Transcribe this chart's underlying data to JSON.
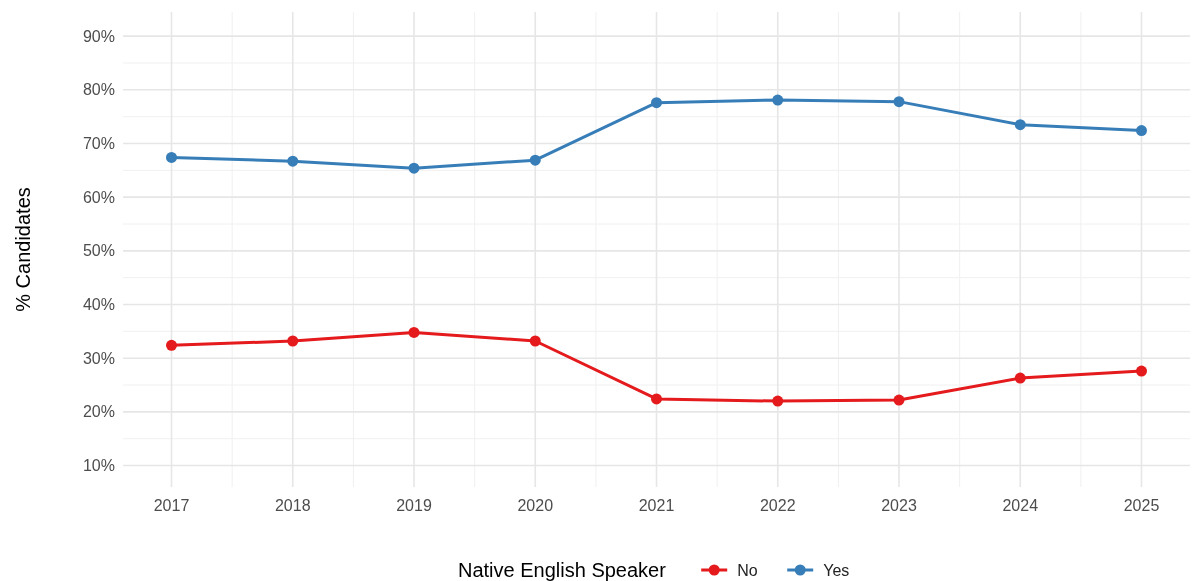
{
  "chart_data": {
    "type": "line",
    "ylabel": "% Candidates",
    "legend_title": "Native English Speaker",
    "x": [
      2017,
      2018,
      2019,
      2020,
      2021,
      2022,
      2023,
      2024,
      2025
    ],
    "xlim": [
      2016.6,
      2025.4
    ],
    "xticks": [
      2017,
      2018,
      2019,
      2020,
      2021,
      2022,
      2023,
      2024,
      2025
    ],
    "ylim": [
      6,
      94.5
    ],
    "yticks": [
      {
        "value": 10,
        "label": "10%"
      },
      {
        "value": 20,
        "label": "20%"
      },
      {
        "value": 30,
        "label": "30%"
      },
      {
        "value": 40,
        "label": "40%"
      },
      {
        "value": 50,
        "label": "50%"
      },
      {
        "value": 60,
        "label": "60%"
      },
      {
        "value": 70,
        "label": "70%"
      },
      {
        "value": 80,
        "label": "80%"
      },
      {
        "value": 90,
        "label": "90%"
      }
    ],
    "series": [
      {
        "name": "No",
        "color": "#e41a1c",
        "values": [
          32.4,
          33.2,
          34.8,
          33.2,
          22.4,
          22.0,
          22.2,
          26.3,
          27.6
        ]
      },
      {
        "name": "Yes",
        "color": "#377eb8",
        "values": [
          67.4,
          66.7,
          65.4,
          66.9,
          77.6,
          78.1,
          77.8,
          73.5,
          72.4
        ]
      }
    ],
    "grid": true,
    "legend": "bottom",
    "marker": "circle",
    "line_style": "solid"
  }
}
